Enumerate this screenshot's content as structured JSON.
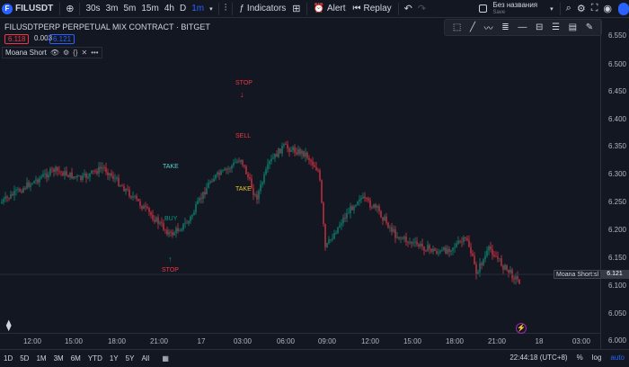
{
  "topbar": {
    "symbol": "FILUSDT",
    "intervals": [
      "30s",
      "3m",
      "5m",
      "15m",
      "4h",
      "D",
      "1m"
    ],
    "active_interval": "1m",
    "indicators_label": "Indicators",
    "alert_label": "Alert",
    "replay_label": "Replay",
    "layout_name": "Без названия",
    "layout_status": "Save"
  },
  "legend": {
    "title": "FILUSDTPERP PERPETUAL MIX CONTRACT · BITGET",
    "sell_price": "6.118",
    "spread": "0.003",
    "buy_price": "6.121",
    "indicator_name": "Moana Short"
  },
  "price_axis": [
    "6.550",
    "6.500",
    "6.450",
    "6.400",
    "6.350",
    "6.300",
    "6.250",
    "6.200",
    "6.150",
    "6.100",
    "6.050",
    "6.000"
  ],
  "time_axis": [
    "12:00",
    "15:00",
    "18:00",
    "21:00",
    "17",
    "03:00",
    "06:00",
    "09:00",
    "12:00",
    "15:00",
    "18:00",
    "21:00",
    "18",
    "03:00"
  ],
  "signals": {
    "stop_top": "STOP",
    "sell": "SELL",
    "take_upper": "TAKE",
    "take_lower": "TAKE",
    "buy": "BUY",
    "stop_bottom": "STOP"
  },
  "last": {
    "label": "Moana Short:sl",
    "price": "6.121"
  },
  "ranges": [
    "1D",
    "5D",
    "1M",
    "3M",
    "6M",
    "YTD",
    "1Y",
    "5Y",
    "All"
  ],
  "status": {
    "time": "22:44:18 (UTC+8)",
    "percent": "%",
    "log": "log",
    "auto": "auto"
  },
  "colors": {
    "background": "#131722",
    "up": "#089981",
    "down": "#f23645",
    "accent": "#2962ff"
  }
}
